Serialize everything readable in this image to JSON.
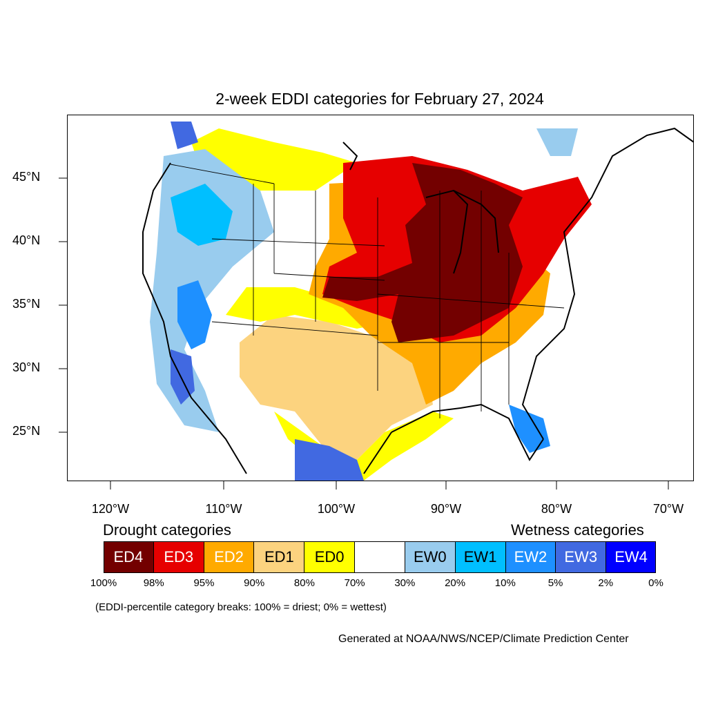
{
  "title": "2-week EDDI categories for February 27, 2024",
  "lat_labels": [
    "45°N",
    "40°N",
    "35°N",
    "30°N",
    "25°N"
  ],
  "lon_labels": [
    "120°W",
    "110°W",
    "100°W",
    "90°W",
    "80°W",
    "70°W"
  ],
  "legend": {
    "drought_title": "Drought categories",
    "wetness_title": "Wetness categories",
    "categories": [
      {
        "label": "ED4",
        "color": "#730000",
        "text_color": "#ffffff"
      },
      {
        "label": "ED3",
        "color": "#e60000",
        "text_color": "#ffffff"
      },
      {
        "label": "ED2",
        "color": "#ffaa00",
        "text_color": "#ffffff"
      },
      {
        "label": "ED1",
        "color": "#fcd37f",
        "text_color": "#000000"
      },
      {
        "label": "ED0",
        "color": "#ffff00",
        "text_color": "#000000"
      },
      {
        "label": "",
        "color": "#ffffff",
        "text_color": "#000000"
      },
      {
        "label": "EW0",
        "color": "#99ccee",
        "text_color": "#000000"
      },
      {
        "label": "EW1",
        "color": "#00bfff",
        "text_color": "#000000"
      },
      {
        "label": "EW2",
        "color": "#1e90ff",
        "text_color": "#ffffff"
      },
      {
        "label": "EW3",
        "color": "#4169e1",
        "text_color": "#ffffff"
      },
      {
        "label": "EW4",
        "color": "#0000ff",
        "text_color": "#ffffff"
      }
    ],
    "breaks": [
      "100%",
      "98%",
      "95%",
      "90%",
      "80%",
      "70%",
      "30%",
      "20%",
      "10%",
      "5%",
      "2%",
      "0%"
    ]
  },
  "note": "(EDDI-percentile category breaks: 100% = driest; 0% = wettest)",
  "credit": "Generated at NOAA/NWS/NCEP/Climate Prediction Center"
}
